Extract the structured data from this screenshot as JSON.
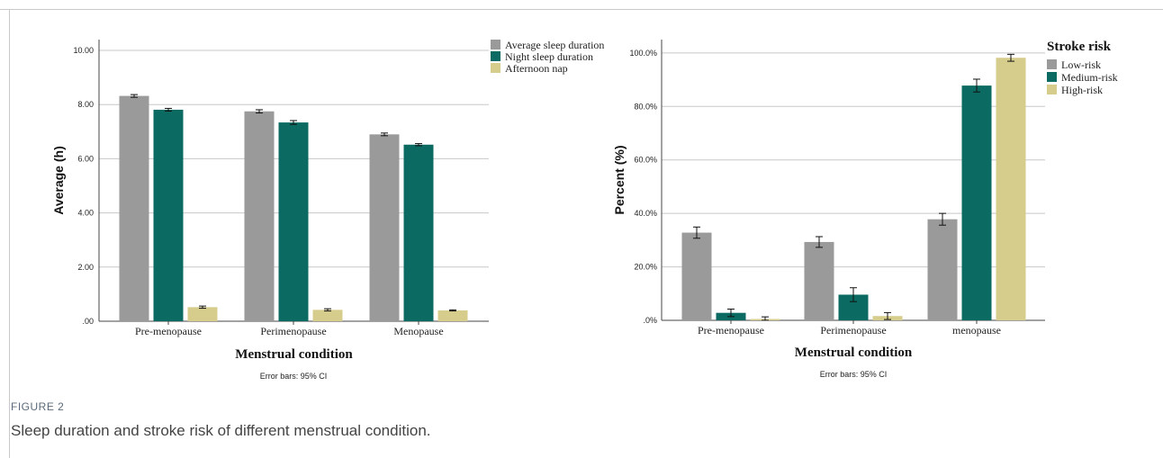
{
  "figure": {
    "label": "FIGURE 2",
    "caption": "Sleep duration and stroke risk of different menstrual condition."
  },
  "colors": {
    "gray": "#9a9a9a",
    "teal": "#0b6a62",
    "khaki": "#d6cc8c",
    "grid": "#c8c8c8",
    "axis": "#444444"
  },
  "chart_data": [
    {
      "type": "bar",
      "categories": [
        "Pre-menopause",
        "Perimenopause",
        "Menopause"
      ],
      "series": [
        {
          "name": "Average sleep duration",
          "values": [
            8.32,
            7.75,
            6.9
          ],
          "err": [
            0.05,
            0.06,
            0.05
          ],
          "color": "#9a9a9a"
        },
        {
          "name": "Night sleep duration",
          "values": [
            7.81,
            7.34,
            6.52
          ],
          "err": [
            0.05,
            0.07,
            0.04
          ],
          "color": "#0b6a62"
        },
        {
          "name": "Afternoon nap",
          "values": [
            0.52,
            0.42,
            0.4
          ],
          "err": [
            0.04,
            0.04,
            0.02
          ],
          "color": "#d6cc8c"
        }
      ],
      "ylim": [
        0,
        10.4
      ],
      "yticks": [
        0,
        2,
        4,
        6,
        8,
        10
      ],
      "ytick_labels": [
        ".00",
        "2.00",
        "4.00",
        "6.00",
        "8.00",
        "10.00"
      ],
      "xlabel": "Menstrual condition",
      "ylabel": "Average (h)",
      "legend_title": "",
      "legend_position": "top-right",
      "note": "Error bars: 95% CI",
      "grid": true
    },
    {
      "type": "bar",
      "categories": [
        "Pre-menopause",
        "Perimenopause",
        "menopause"
      ],
      "series": [
        {
          "name": "Low-risk",
          "values": [
            32.8,
            29.3,
            37.8
          ],
          "err": [
            2.1,
            2.0,
            2.2
          ],
          "color": "#9a9a9a"
        },
        {
          "name": "Medium-risk",
          "values": [
            2.8,
            9.6,
            87.8
          ],
          "err": [
            1.4,
            2.6,
            2.4
          ],
          "color": "#0b6a62"
        },
        {
          "name": "High-risk",
          "values": [
            0.5,
            1.6,
            98.2
          ],
          "err": [
            0.8,
            1.3,
            1.3
          ],
          "color": "#d6cc8c"
        }
      ],
      "ylim": [
        0,
        105
      ],
      "yticks": [
        0,
        20,
        40,
        60,
        80,
        100
      ],
      "ytick_labels": [
        ".0%",
        "20.0%",
        "40.0%",
        "60.0%",
        "80.0%",
        "100.0%"
      ],
      "xlabel": "Menstrual condition",
      "ylabel": "Percent (%)",
      "legend_title": "Stroke risk",
      "legend_position": "top-right",
      "note": "Error bars: 95% CI",
      "grid": true
    }
  ]
}
